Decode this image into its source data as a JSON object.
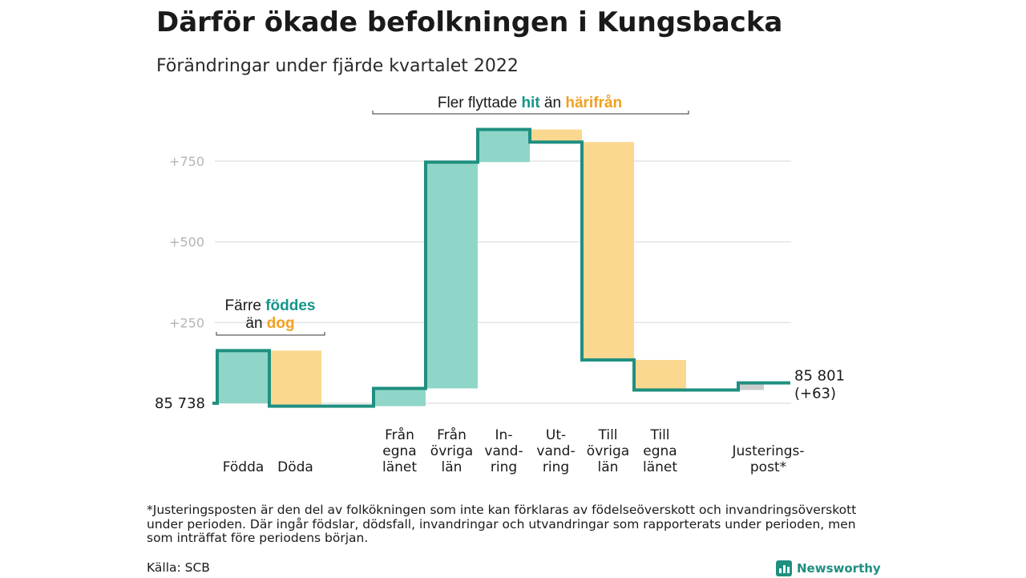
{
  "title": "Därför ökade befolkningen i Kungsbacka",
  "subtitle": "Förändringar under fjärde kvartalet 2022",
  "colors": {
    "inflow": "#8fd6c8",
    "outflow": "#fbd88f",
    "adjustment": "#cccccc",
    "line": "#1f8f80",
    "highlight_teal": "#14958a",
    "highlight_orange": "#f0a020",
    "grid": "#e3e3e3"
  },
  "chart_data": {
    "type": "waterfall",
    "baseline_population": 85738,
    "y_axis": {
      "ticks": [
        "+250",
        "+500",
        "+750"
      ],
      "tick_values": [
        250,
        500,
        750
      ],
      "range": [
        -30,
        900
      ],
      "grid": true
    },
    "categories": [
      {
        "id": "fodda",
        "label": [
          "Födda"
        ],
        "change": 163,
        "kind": "inflow"
      },
      {
        "id": "doda",
        "label": [
          "Döda"
        ],
        "change": -172,
        "kind": "outflow"
      },
      {
        "id": "spacer",
        "label": [],
        "change": 0,
        "kind": "spacer"
      },
      {
        "id": "fran_egna",
        "label": [
          "Från",
          "egna",
          "länet"
        ],
        "change": 55,
        "kind": "inflow"
      },
      {
        "id": "fran_ovriga",
        "label": [
          "Från",
          "övriga",
          "län"
        ],
        "change": 701,
        "kind": "inflow"
      },
      {
        "id": "invandring",
        "label": [
          "In-",
          "vand-",
          "ring"
        ],
        "change": 101,
        "kind": "inflow"
      },
      {
        "id": "utvandring",
        "label": [
          "Ut-",
          "vand-",
          "ring"
        ],
        "change": -39,
        "kind": "outflow"
      },
      {
        "id": "till_ovriga",
        "label": [
          "Till",
          "övriga",
          "län"
        ],
        "change": -675,
        "kind": "outflow"
      },
      {
        "id": "till_egna",
        "label": [
          "Till",
          "egna",
          "länet"
        ],
        "change": -93,
        "kind": "outflow"
      },
      {
        "id": "spacer2",
        "label": [],
        "change": 0,
        "kind": "spacer"
      },
      {
        "id": "justering",
        "label": [
          "Justerings-",
          "post*"
        ],
        "change": 22,
        "kind": "adjustment"
      }
    ],
    "start_label": "85 738",
    "end_label": [
      "85 801",
      "(+63)"
    ],
    "end_population": 85801,
    "net_change": 63
  },
  "annotations": {
    "births": {
      "line1_pre": "Färre ",
      "line1_hl": "föddes",
      "line2_pre": "än ",
      "line2_hl": "dog"
    },
    "migration": {
      "pre": "Fler flyttade ",
      "hl1": "hit",
      "mid": " än ",
      "hl2": "härifrån"
    }
  },
  "footnote": "*Justeringsposten är den del av folkökningen som inte kan förklaras av födelseöverskott och invandringsöverskott under perioden. Där ingår födslar, dödsfall, invandringar och utvandringar som rapporterats under perioden, men som inträffat före periodens början.",
  "source": "Källa: SCB",
  "brand": {
    "name": "Newsworthy",
    "icon": "bar-chart-logo-icon"
  }
}
